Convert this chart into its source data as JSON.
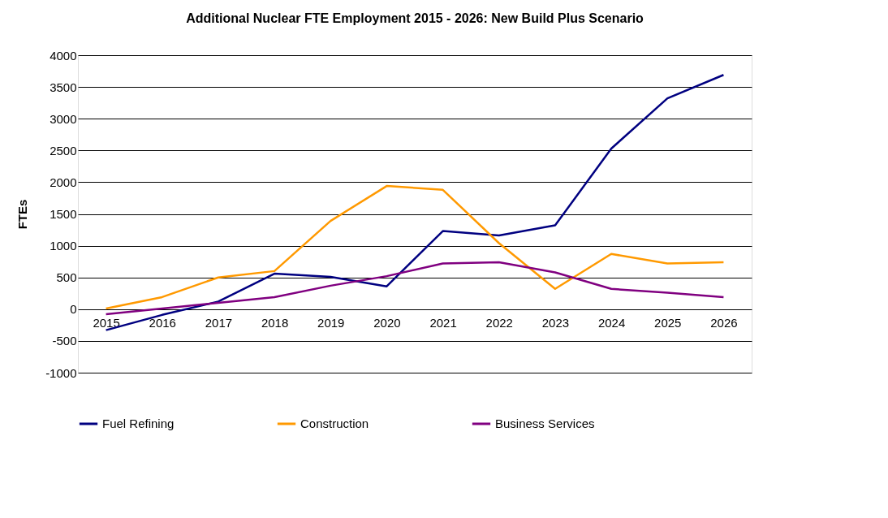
{
  "chart_data": {
    "type": "line",
    "title": "Additional Nuclear FTE Employment 2015 - 2026: New Build Plus Scenario",
    "ylabel": "FTEs",
    "categories": [
      "2015",
      "2016",
      "2017",
      "2018",
      "2019",
      "2020",
      "2021",
      "2022",
      "2023",
      "2024",
      "2025",
      "2026"
    ],
    "series": [
      {
        "name": "Fuel Refining",
        "color": "#000080",
        "values": [
          -330,
          -90,
          120,
          560,
          510,
          360,
          1230,
          1160,
          1320,
          2530,
          3320,
          3690
        ]
      },
      {
        "name": "Construction",
        "color": "#ff9900",
        "values": [
          10,
          190,
          500,
          600,
          1390,
          1940,
          1880,
          1040,
          320,
          870,
          720,
          740
        ]
      },
      {
        "name": "Business Services",
        "color": "#800080",
        "values": [
          -80,
          10,
          100,
          190,
          370,
          520,
          720,
          740,
          580,
          320,
          260,
          190
        ]
      }
    ],
    "ylim": [
      -1000,
      4000
    ],
    "yticks": [
      -1000,
      -500,
      0,
      500,
      1000,
      1500,
      2000,
      2500,
      3000,
      3500,
      4000
    ],
    "grid": "y",
    "legend": "bottom",
    "marker": "none",
    "line_style": "solid"
  }
}
